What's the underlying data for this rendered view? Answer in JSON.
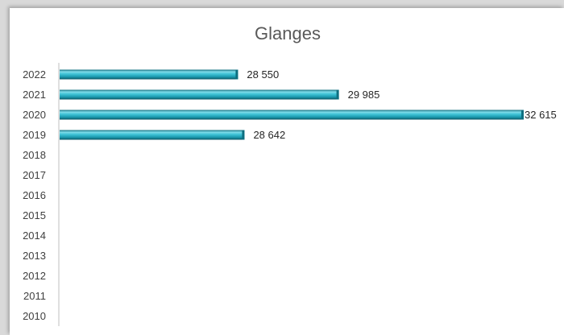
{
  "chart_data": {
    "type": "bar",
    "orientation": "horizontal",
    "title": "Glanges",
    "categories": [
      "2022",
      "2021",
      "2020",
      "2019",
      "2018",
      "2017",
      "2016",
      "2015",
      "2014",
      "2013",
      "2012",
      "2011",
      "2010"
    ],
    "values": [
      28550,
      29985,
      32615,
      28642,
      null,
      null,
      null,
      null,
      null,
      null,
      null,
      null,
      null
    ],
    "data_labels": [
      "28 550",
      "29 985",
      "32 615",
      "28 642",
      "",
      "",
      "",
      "",
      "",
      "",
      "",
      "",
      ""
    ],
    "xlim": [
      26000,
      32615
    ],
    "grid": false,
    "legend": "none",
    "colors": {
      "bar": "#2eb8cc",
      "bar_dark": "#0e6f80",
      "bar_light": "#aee9f2",
      "axis": "#bfbfbf"
    }
  }
}
